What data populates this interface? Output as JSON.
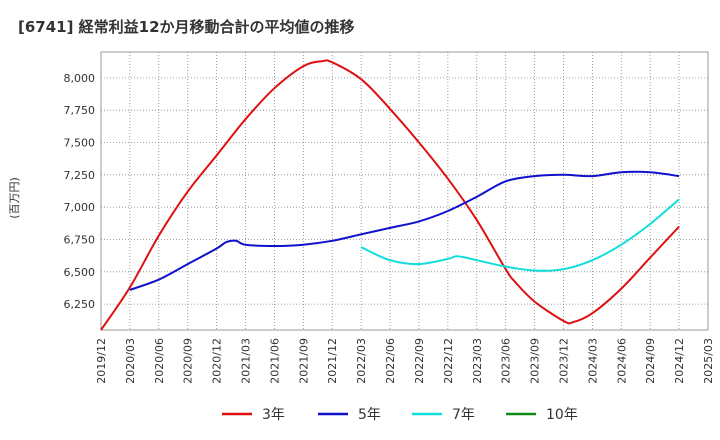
{
  "chart_data": {
    "type": "line",
    "title": "[6741]  経常利益12か月移動合計の平均値の推移",
    "ylabel": "(百万円)",
    "xlabel": "",
    "ylim": [
      6050,
      8200
    ],
    "yticks": [
      6250,
      6500,
      6750,
      7000,
      7250,
      7500,
      7750,
      8000
    ],
    "ytick_labels": [
      "6,250",
      "6,500",
      "6,750",
      "7,000",
      "7,250",
      "7,500",
      "7,750",
      "8,000"
    ],
    "x_ticks": [
      "2019/12",
      "2020/03",
      "2020/06",
      "2020/09",
      "2020/12",
      "2021/03",
      "2021/06",
      "2021/09",
      "2021/12",
      "2022/03",
      "2022/06",
      "2022/09",
      "2022/12",
      "2023/03",
      "2023/06",
      "2023/09",
      "2023/12",
      "2024/03",
      "2024/06",
      "2024/09",
      "2024/12",
      "2025/03"
    ],
    "grid": true,
    "legend_position": "bottom",
    "series": [
      {
        "name": "3年",
        "color": "#dd1111",
        "x": [
          "2019/12",
          "2020/03",
          "2020/06",
          "2020/09",
          "2020/12",
          "2021/03",
          "2021/06",
          "2021/09",
          "2021/11",
          "2021/12",
          "2022/03",
          "2022/06",
          "2022/09",
          "2022/12",
          "2023/03",
          "2023/06",
          "2023/07",
          "2023/09",
          "2023/12",
          "2024/01",
          "2024/03",
          "2024/06",
          "2024/09",
          "2024/12"
        ],
        "values": [
          6050,
          6380,
          6780,
          7120,
          7400,
          7680,
          7920,
          8090,
          8130,
          8120,
          7990,
          7760,
          7500,
          7220,
          6900,
          6520,
          6420,
          6270,
          6120,
          6110,
          6180,
          6370,
          6610,
          6850
        ]
      },
      {
        "name": "5年",
        "color": "#1111cc",
        "x": [
          "2020/03",
          "2020/06",
          "2020/09",
          "2020/12",
          "2021/01",
          "2021/02",
          "2021/03",
          "2021/06",
          "2021/09",
          "2021/12",
          "2022/03",
          "2022/06",
          "2022/09",
          "2022/12",
          "2023/03",
          "2023/06",
          "2023/09",
          "2023/12",
          "2024/03",
          "2024/06",
          "2024/09",
          "2024/12"
        ],
        "values": [
          6360,
          6440,
          6560,
          6680,
          6730,
          6740,
          6710,
          6700,
          6710,
          6740,
          6790,
          6840,
          6890,
          6970,
          7080,
          7200,
          7240,
          7250,
          7240,
          7270,
          7270,
          7240
        ]
      },
      {
        "name": "7年",
        "color": "#11dddd",
        "x": [
          "2022/03",
          "2022/06",
          "2022/09",
          "2022/12",
          "2023/01",
          "2023/03",
          "2023/06",
          "2023/09",
          "2023/12",
          "2024/03",
          "2024/06",
          "2024/09",
          "2024/12"
        ],
        "values": [
          6690,
          6590,
          6560,
          6600,
          6620,
          6590,
          6540,
          6510,
          6520,
          6590,
          6710,
          6870,
          7060
        ]
      },
      {
        "name": "10年",
        "color": "#118811",
        "x": [],
        "values": []
      }
    ]
  }
}
